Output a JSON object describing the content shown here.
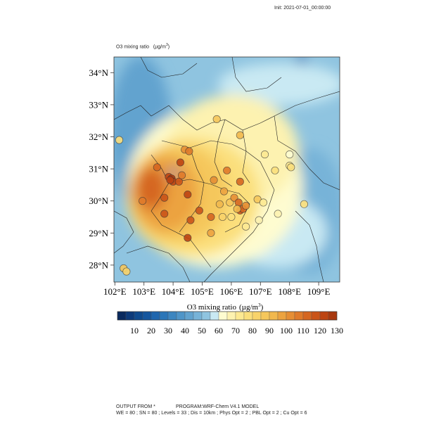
{
  "header": {
    "init": "Init: 2021-07-01_00:00:00",
    "field_title": "O3 mixing ratio",
    "field_units": "(µg/m",
    "field_units_sup": "3",
    "field_units_close": ")"
  },
  "map": {
    "lon_ticks": [
      "102°E",
      "103°E",
      "104°E",
      "105°E",
      "106°E",
      "107°E",
      "108°E",
      "109°E"
    ],
    "lat_ticks": [
      "34°N",
      "33°N",
      "32°N",
      "31°N",
      "30°N",
      "29°N",
      "28°N"
    ],
    "lon_range": [
      102,
      109.75
    ],
    "lat_range": [
      27.45,
      34.5
    ],
    "stations": [
      [
        102.15,
        31.9,
        75
      ],
      [
        102.3,
        27.9,
        85
      ],
      [
        102.4,
        27.8,
        80
      ],
      [
        102.95,
        30.0,
        105
      ],
      [
        103.7,
        29.6,
        115
      ],
      [
        103.7,
        30.1,
        115
      ],
      [
        103.45,
        31.05,
        110
      ],
      [
        103.85,
        30.75,
        120
      ],
      [
        103.95,
        30.7,
        125
      ],
      [
        104.0,
        30.6,
        120
      ],
      [
        103.9,
        30.65,
        122
      ],
      [
        104.2,
        30.6,
        115
      ],
      [
        104.3,
        30.8,
        105
      ],
      [
        104.25,
        31.2,
        120
      ],
      [
        104.4,
        31.6,
        100
      ],
      [
        104.55,
        31.55,
        105
      ],
      [
        104.5,
        30.2,
        120
      ],
      [
        104.6,
        29.4,
        115
      ],
      [
        104.5,
        28.85,
        120
      ],
      [
        104.9,
        29.7,
        115
      ],
      [
        105.3,
        29.0,
        95
      ],
      [
        105.3,
        29.5,
        110
      ],
      [
        105.4,
        30.65,
        100
      ],
      [
        105.5,
        32.55,
        85
      ],
      [
        105.6,
        29.9,
        90
      ],
      [
        105.75,
        30.3,
        95
      ],
      [
        105.7,
        29.5,
        80
      ],
      [
        105.85,
        30.95,
        105
      ],
      [
        105.95,
        29.95,
        85
      ],
      [
        106.3,
        32.05,
        90
      ],
      [
        106.3,
        30.6,
        110
      ],
      [
        106.1,
        30.1,
        100
      ],
      [
        106.25,
        29.95,
        110
      ],
      [
        106.3,
        29.7,
        115
      ],
      [
        106.4,
        29.75,
        110
      ],
      [
        106.2,
        29.75,
        90
      ],
      [
        106.5,
        29.85,
        100
      ],
      [
        106.0,
        29.5,
        75
      ],
      [
        106.5,
        29.2,
        70
      ],
      [
        106.9,
        30.05,
        85
      ],
      [
        107.1,
        29.95,
        70
      ],
      [
        106.95,
        29.4,
        65
      ],
      [
        107.15,
        31.45,
        70
      ],
      [
        107.5,
        30.95,
        75
      ],
      [
        107.6,
        29.6,
        65
      ],
      [
        108.0,
        31.45,
        60
      ],
      [
        108.0,
        31.1,
        70
      ],
      [
        108.05,
        31.05,
        75
      ],
      [
        108.5,
        29.9,
        75
      ]
    ]
  },
  "colorbar": {
    "title": "O3 mixing ratio",
    "units": "(µg/m",
    "units_sup": "3",
    "units_close": ")",
    "tick_labels": [
      "10",
      "20",
      "30",
      "40",
      "50",
      "60",
      "70",
      "80",
      "90",
      "100",
      "110",
      "120",
      "130"
    ],
    "colors": [
      "#0a2a5e",
      "#0d3a7a",
      "#0f4a8e",
      "#14569e",
      "#1f66ae",
      "#2b76b8",
      "#3d86c0",
      "#4f95c8",
      "#62a3cf",
      "#77b3d8",
      "#8fc4e0",
      "#c9e9f3",
      "#fefcd0",
      "#fdf2b0",
      "#fde992",
      "#fbdf7c",
      "#f8d36a",
      "#f5c75c",
      "#f1b84e",
      "#eca340",
      "#e68e34",
      "#df7a2a",
      "#d56620",
      "#ca5418",
      "#bd4412",
      "#a8380e"
    ]
  },
  "footer": {
    "line1_a": "OUTPUT FROM *",
    "line1_b": "PROGRAM:WRF-Chem V4.1 MODEL",
    "line2": "WE = 80 ; SN = 80 ; Levels = 33 ; Dis = 10km ; Phys Opt = 2 ; PBL Opt = 2 ; Cu Opt = 6"
  }
}
